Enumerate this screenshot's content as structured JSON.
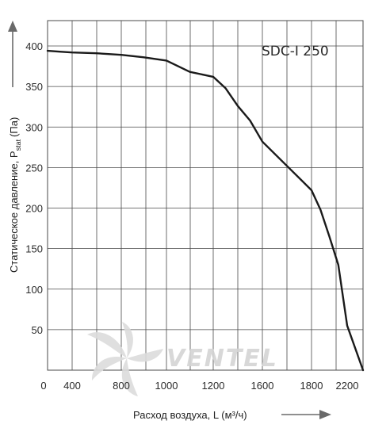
{
  "chart_data": {
    "type": "line",
    "model_label": "SDC-I 250",
    "xlabel": "Расход воздуха, L (м³/ч)",
    "ylabel": "Статическое давление, P",
    "ylabel_sub": "stat",
    "ylabel_unit": "(Па)",
    "x_ticks": [
      "0",
      "400",
      "800",
      "1000",
      "1200",
      "1600",
      "1800",
      "2200"
    ],
    "y_ticks": [
      "50",
      "100",
      "150",
      "200",
      "250",
      "300",
      "350",
      "400"
    ],
    "grid": true,
    "series": [
      {
        "color": "#1a1a1a",
        "points": [
          [
            0,
            394
          ],
          [
            200,
            393
          ],
          [
            400,
            392
          ],
          [
            600,
            391
          ],
          [
            800,
            389
          ],
          [
            900,
            386
          ],
          [
            1000,
            382
          ],
          [
            1100,
            368
          ],
          [
            1200,
            362
          ],
          [
            1300,
            348
          ],
          [
            1400,
            326
          ],
          [
            1500,
            308
          ],
          [
            1600,
            282
          ],
          [
            1700,
            252
          ],
          [
            1800,
            222
          ],
          [
            1900,
            198
          ],
          [
            2000,
            165
          ],
          [
            2100,
            130
          ],
          [
            2200,
            55
          ],
          [
            2250,
            0
          ]
        ]
      }
    ]
  },
  "watermark": {
    "text": "VENTEL",
    "color": "#d4d4d4"
  }
}
